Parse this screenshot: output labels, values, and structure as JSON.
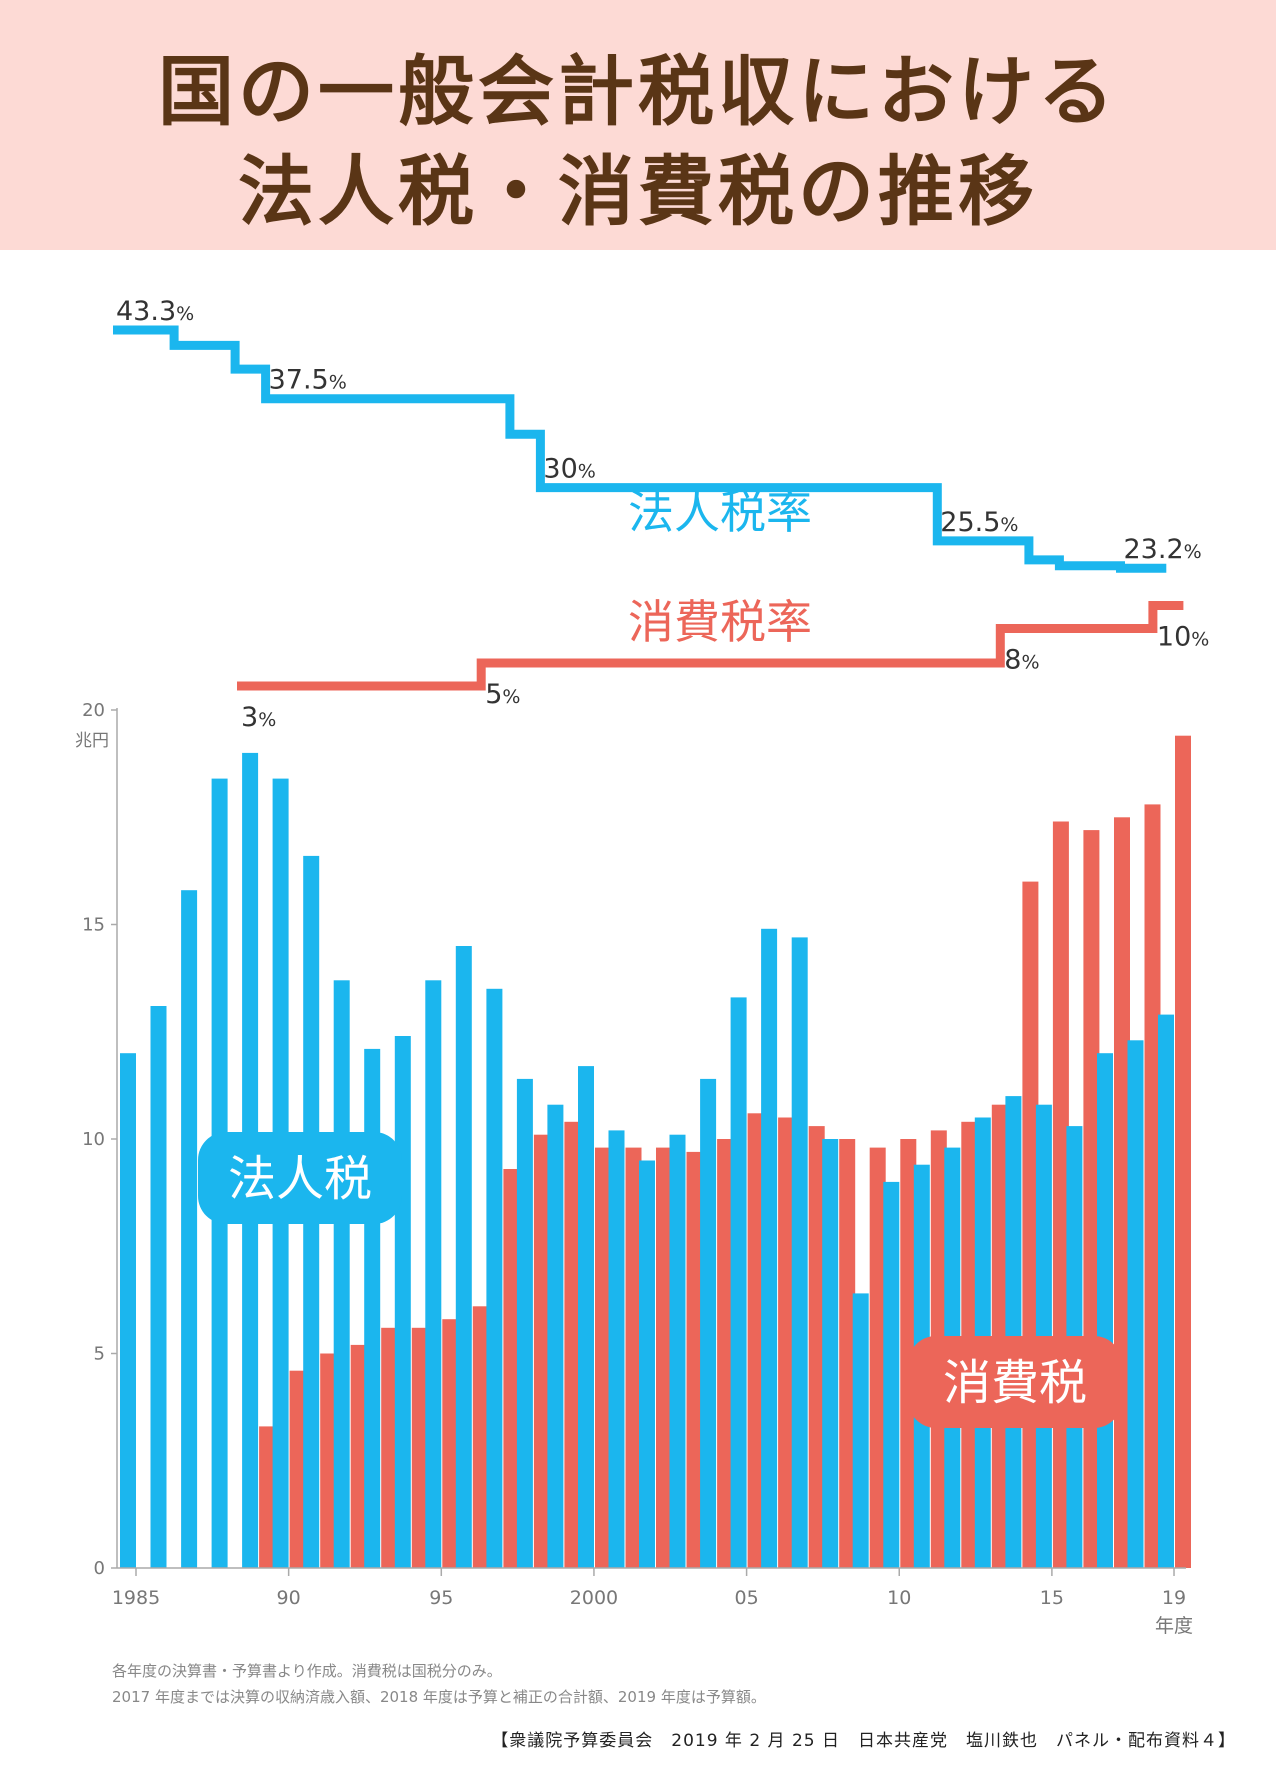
{
  "title": {
    "line1": "国の一般会計税収における",
    "line2": "法人税・消費税の推移"
  },
  "colors": {
    "corporate": "#1bb6ee",
    "consumption": "#ec6659",
    "header_bg": "#fddad5",
    "title_text": "#5a3516"
  },
  "chart_data": {
    "type": "bar",
    "ylabel": "兆円",
    "xlabel": "年度",
    "ylim": [
      0,
      20
    ],
    "y_ticks": [
      "0",
      "5",
      "10",
      "15",
      "20"
    ],
    "x_tick_labels": [
      {
        "year": 1985,
        "label": "1985"
      },
      {
        "year": 1990,
        "label": "90"
      },
      {
        "year": 1995,
        "label": "95"
      },
      {
        "year": 2000,
        "label": "2000"
      },
      {
        "year": 2005,
        "label": "05"
      },
      {
        "year": 2010,
        "label": "10"
      },
      {
        "year": 2015,
        "label": "15"
      },
      {
        "year": 2019,
        "label": "19"
      }
    ],
    "grid": false,
    "years": [
      1985,
      1986,
      1987,
      1988,
      1989,
      1990,
      1991,
      1992,
      1993,
      1994,
      1995,
      1996,
      1997,
      1998,
      1999,
      2000,
      2001,
      2002,
      2003,
      2004,
      2005,
      2006,
      2007,
      2008,
      2009,
      2010,
      2011,
      2012,
      2013,
      2014,
      2015,
      2016,
      2017,
      2018,
      2019
    ],
    "series": [
      {
        "name": "法人税",
        "values": [
          12.0,
          13.1,
          15.8,
          18.4,
          19.0,
          18.4,
          16.6,
          13.7,
          12.1,
          12.4,
          13.7,
          14.5,
          13.5,
          11.4,
          10.8,
          11.7,
          10.2,
          9.5,
          10.1,
          11.4,
          13.3,
          14.9,
          14.7,
          10.0,
          6.4,
          9.0,
          9.4,
          9.8,
          10.5,
          11.0,
          10.8,
          10.3,
          12.0,
          12.3,
          12.9
        ]
      },
      {
        "name": "消費税",
        "values": [
          null,
          null,
          null,
          null,
          3.3,
          4.6,
          5.0,
          5.2,
          5.6,
          5.6,
          5.8,
          6.1,
          9.3,
          10.1,
          10.4,
          9.8,
          9.8,
          9.8,
          9.7,
          10.0,
          10.6,
          10.5,
          10.3,
          10.0,
          9.8,
          10.0,
          10.2,
          10.4,
          10.8,
          16.0,
          17.4,
          17.2,
          17.5,
          17.8,
          19.4
        ]
      }
    ],
    "legend_labels": {
      "corporate": "法人税",
      "consumption": "消費税"
    },
    "rate_lines": {
      "corporate_rate": {
        "label": "法人税率",
        "steps": [
          {
            "from": 1985,
            "to": 1987,
            "rate": 43.3
          },
          {
            "from": 1987,
            "to": 1989,
            "rate": 42.0
          },
          {
            "from": 1989,
            "to": 1990,
            "rate": 40.0
          },
          {
            "from": 1990,
            "to": 1998,
            "rate": 37.5
          },
          {
            "from": 1998,
            "to": 1999,
            "rate": 34.5
          },
          {
            "from": 1999,
            "to": 2012,
            "rate": 30.0
          },
          {
            "from": 2012,
            "to": 2015,
            "rate": 25.5
          },
          {
            "from": 2015,
            "to": 2016,
            "rate": 23.9
          },
          {
            "from": 2016,
            "to": 2018,
            "rate": 23.4
          },
          {
            "from": 2018,
            "to": 2019.5,
            "rate": 23.2
          }
        ],
        "annotations": [
          {
            "year": 1985,
            "rate": 43.3,
            "num": "43.3",
            "unit": "%"
          },
          {
            "year": 1990,
            "rate": 37.5,
            "num": "37.5",
            "unit": "%"
          },
          {
            "year": 1999,
            "rate": 30.0,
            "num": "30",
            "unit": "%"
          },
          {
            "year": 2012,
            "rate": 25.5,
            "num": "25.5",
            "unit": "%"
          },
          {
            "year": 2018,
            "rate": 23.2,
            "num": "23.2",
            "unit": "%"
          }
        ]
      },
      "consumption_rate": {
        "label": "消費税率",
        "steps": [
          {
            "from": 1989,
            "to": 1997,
            "rate": 3
          },
          {
            "from": 1997,
            "to": 2014,
            "rate": 5
          },
          {
            "from": 2014,
            "to": 2019,
            "rate": 8
          },
          {
            "from": 2019,
            "to": 2020,
            "rate": 10
          }
        ],
        "annotations": [
          {
            "year": 1989,
            "rate": 3,
            "num": "3",
            "unit": "%"
          },
          {
            "year": 1997,
            "rate": 5,
            "num": "5",
            "unit": "%"
          },
          {
            "year": 2014,
            "rate": 8,
            "num": "8",
            "unit": "%"
          },
          {
            "year": 2019,
            "rate": 10,
            "num": "10",
            "unit": "%"
          }
        ]
      }
    }
  },
  "notes": {
    "line1": "各年度の決算書・予算書より作成。消費税は国税分のみ。",
    "line2": "2017 年度までは決算の収納済歳入額、2018 年度は予算と補正の合計額、2019 年度は予算額。"
  },
  "credit": "【衆議院予算委員会　2019 年 2 月 25 日　日本共産党　塩川鉄也　パネル・配布資料４】"
}
